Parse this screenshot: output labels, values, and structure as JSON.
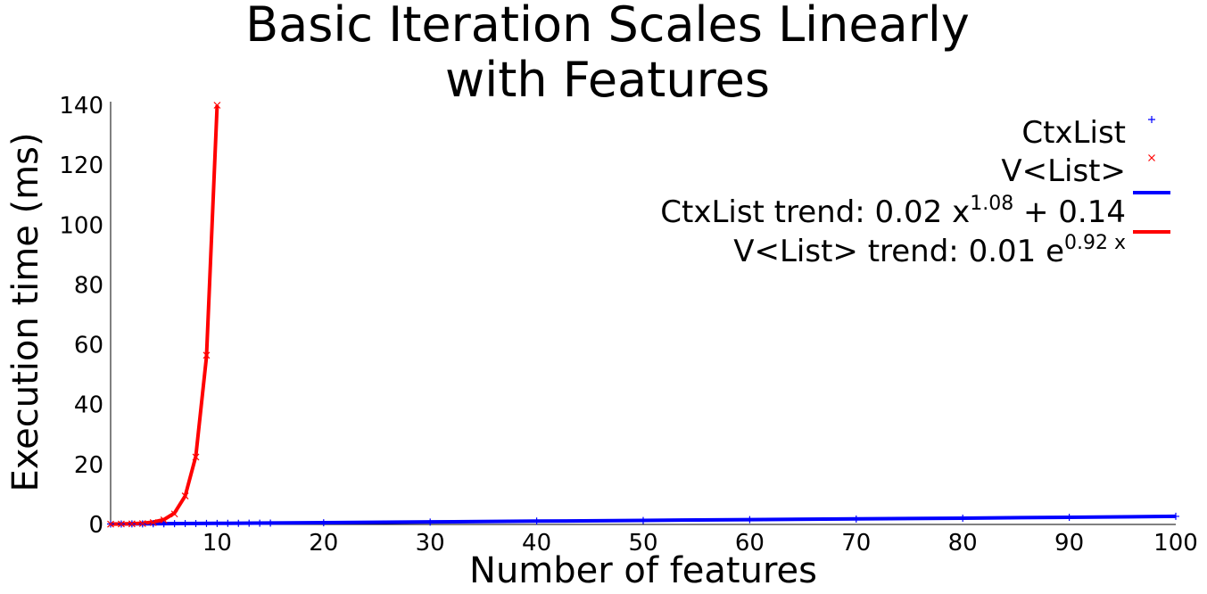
{
  "chart_data": {
    "type": "line",
    "title_lines": [
      "Basic Iteration Scales Linearly",
      "with Features"
    ],
    "xlabel": "Number of features",
    "ylabel": "Execution time (ms)",
    "xlim": [
      0,
      100
    ],
    "ylim": [
      0,
      140
    ],
    "xticks": [
      10,
      20,
      30,
      40,
      50,
      60,
      70,
      80,
      90,
      100
    ],
    "yticks": [
      0,
      20,
      40,
      60,
      80,
      100,
      120,
      140
    ],
    "grid": false,
    "legend_position": "top-right",
    "series": [
      {
        "name": "CtxList",
        "kind": "scatter",
        "marker": "+",
        "color": "#0000ff",
        "x": [
          0,
          1,
          2,
          3,
          4,
          5,
          6,
          7,
          8,
          9,
          10,
          11,
          12,
          13,
          14,
          15,
          20,
          30,
          40,
          50,
          60,
          70,
          80,
          90,
          100
        ],
        "y": [
          0.14,
          0.16,
          0.18,
          0.2,
          0.22,
          0.24,
          0.26,
          0.28,
          0.3,
          0.32,
          0.34,
          0.36,
          0.38,
          0.4,
          0.42,
          0.45,
          0.55,
          0.8,
          1.1,
          1.3,
          1.6,
          1.8,
          2.1,
          2.4,
          2.7
        ]
      },
      {
        "name": "V<List>",
        "kind": "scatter",
        "marker": "x",
        "color": "#ff0000",
        "x": [
          0,
          1,
          2,
          3,
          4,
          5,
          6,
          7,
          8,
          9,
          10
        ],
        "y": [
          0.1,
          0.15,
          0.2,
          0.3,
          0.6,
          1.5,
          3.5,
          9.5,
          22.5,
          56.5,
          140.0
        ]
      },
      {
        "name_prefix": "CtxList trend: 0.02 x",
        "name_sup": "1.08",
        "name_suffix": " + 0.14",
        "kind": "line",
        "color": "#0000ff",
        "x": [
          0,
          5,
          10,
          15,
          20,
          30,
          40,
          50,
          60,
          70,
          80,
          90,
          100
        ],
        "y": [
          0.14,
          0.25,
          0.36,
          0.48,
          0.6,
          0.85,
          1.1,
          1.35,
          1.6,
          1.85,
          2.1,
          2.4,
          2.7
        ]
      },
      {
        "name_prefix": "V<List> trend: 0.01 e",
        "name_sup": "0.92 x",
        "name_suffix": "",
        "kind": "line",
        "color": "#ff0000",
        "x": [
          0,
          1,
          2,
          3,
          4,
          5,
          6,
          7,
          8,
          9,
          10
        ],
        "y": [
          0.1,
          0.15,
          0.25,
          0.4,
          0.8,
          1.6,
          3.8,
          9.5,
          22.8,
          56.0,
          140.0
        ]
      }
    ]
  }
}
